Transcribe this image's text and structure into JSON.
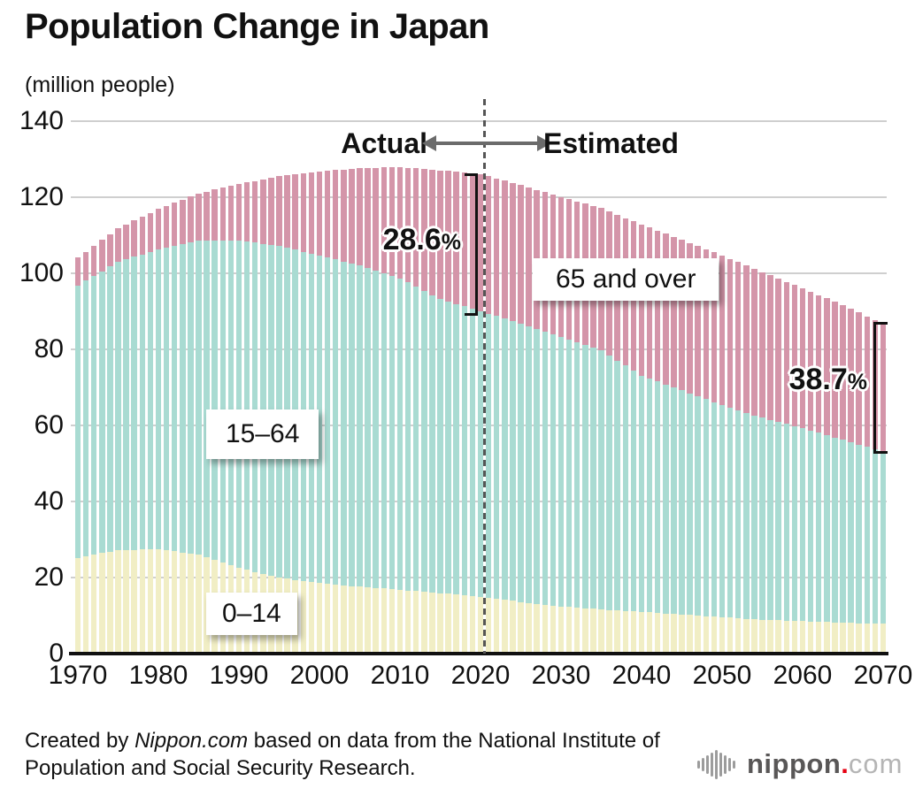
{
  "title": "Population Change in Japan",
  "unit_label": "(million people)",
  "phase": {
    "actual": "Actual",
    "estimated": "Estimated"
  },
  "annotations": {
    "share_2020": {
      "value": "28.6",
      "sign": "%"
    },
    "share_2070": {
      "value": "38.7",
      "sign": "%"
    }
  },
  "series_labels": {
    "old": "65 and over",
    "working": "15–64",
    "young": "0–14"
  },
  "footer": {
    "line1_prefix": "Created by ",
    "line1_source": "Nippon.com",
    "line1_rest": " based on data from the National Institute of",
    "line2": "Population and Social Security Research."
  },
  "logo": {
    "icon": "audio-wave-icon",
    "wordmark": "nippon",
    "dot": ".",
    "tld": "com"
  },
  "colors": {
    "age_0_14": "#f1eec5",
    "age_15_64": "#a9dbd2",
    "age_65_over": "#d495a9",
    "gridline": "#cfcfcf",
    "divider": "#555555",
    "arrow": "#6b6b6b",
    "bracket": "#111111",
    "logo_red": "#e60012",
    "logo_gray": "#595757",
    "logo_light_gray": "#b5b5b5"
  },
  "chart_data": {
    "type": "bar",
    "stacked": true,
    "title": "Population Change in Japan",
    "ylabel": "(million people)",
    "ylim": [
      0,
      140
    ],
    "y_ticks": [
      0,
      20,
      40,
      60,
      80,
      100,
      120,
      140
    ],
    "x_ticks": [
      1970,
      1980,
      1990,
      2000,
      2010,
      2020,
      2030,
      2040,
      2050,
      2060,
      2070
    ],
    "grid": "horizontal",
    "legend_position": "inline-boxes",
    "bar_interval_years": 1,
    "divider_between": [
      2020,
      2021
    ],
    "actual_range": [
      1970,
      2020
    ],
    "estimated_range": [
      2021,
      2070
    ],
    "series_order_bottom_to_top": [
      "0–14",
      "15–64",
      "65 and over"
    ],
    "interpolation": "linear-yearly-between-anchors",
    "anchors": {
      "years": [
        1970,
        1975,
        1980,
        1985,
        1990,
        1995,
        2000,
        2005,
        2010,
        2015,
        2020,
        2025,
        2030,
        2035,
        2040,
        2045,
        2050,
        2055,
        2060,
        2065,
        2070
      ],
      "age_0_14": [
        25.2,
        27.2,
        27.5,
        26.0,
        22.5,
        20.0,
        18.5,
        17.6,
        16.8,
        15.9,
        15.0,
        13.6,
        12.4,
        11.6,
        11.0,
        10.3,
        9.6,
        8.9,
        8.5,
        8.1,
        7.8
      ],
      "age_15_64": [
        71.6,
        75.8,
        78.8,
        82.5,
        86.1,
        87.2,
        86.2,
        84.4,
        81.9,
        77.3,
        75.1,
        73.1,
        70.8,
        68.1,
        62.1,
        58.9,
        55.8,
        53.1,
        50.8,
        48.1,
        45.3
      ],
      "age_65_over": [
        7.3,
        8.9,
        10.6,
        12.5,
        14.9,
        18.3,
        22.0,
        25.7,
        29.2,
        33.9,
        36.0,
        36.5,
        36.9,
        37.4,
        39.7,
        39.6,
        39.3,
        38.3,
        36.8,
        35.4,
        33.7
      ]
    },
    "callouts": [
      {
        "text": "28.6%",
        "year": 2020,
        "series": "65 and over"
      },
      {
        "text": "38.7%",
        "year": 2070,
        "series": "65 and over"
      }
    ]
  }
}
